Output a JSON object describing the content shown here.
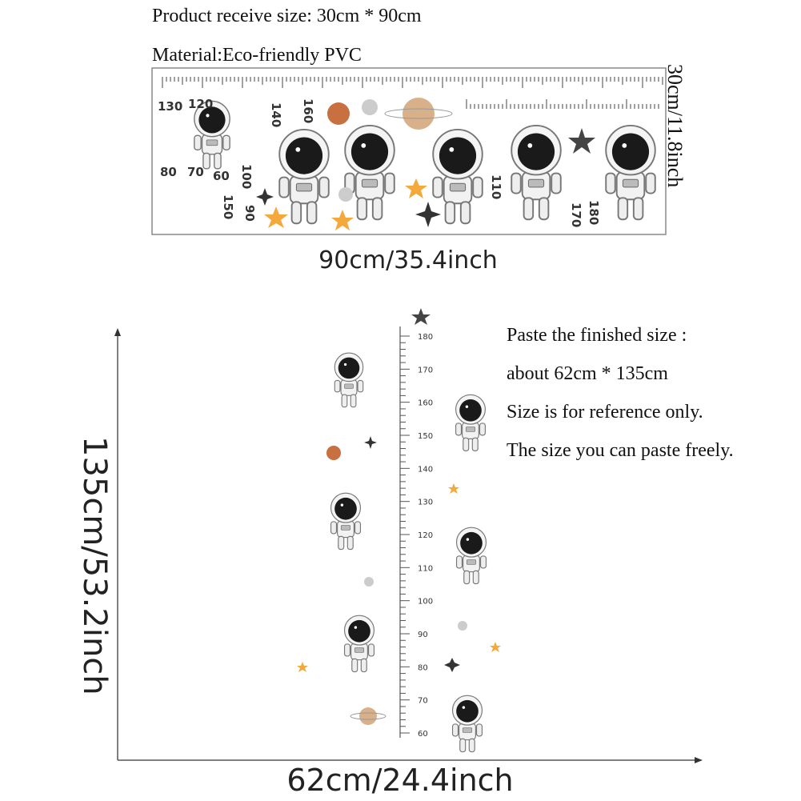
{
  "header": {
    "size": "Product receive size: 30cm * 90cm",
    "material": "Material:Eco-friendly PVC"
  },
  "sheet": {
    "height_label": "30cm/11.8inch",
    "width_label": "90cm/35.4inch",
    "numbers": [
      130,
      120,
      140,
      160,
      80,
      70,
      60,
      100,
      150,
      90,
      110,
      170,
      180
    ]
  },
  "ruler": {
    "labels": [
      180,
      170,
      160,
      150,
      140,
      130,
      120,
      110,
      100,
      90,
      80,
      70,
      60
    ]
  },
  "finished": {
    "height_label": "135cm/53.2inch",
    "width_label": "62cm/24.4inch",
    "notes": [
      "Paste the finished size :",
      "about 62cm * 135cm",
      "Size is for reference only.",
      "The size you can paste freely."
    ]
  }
}
